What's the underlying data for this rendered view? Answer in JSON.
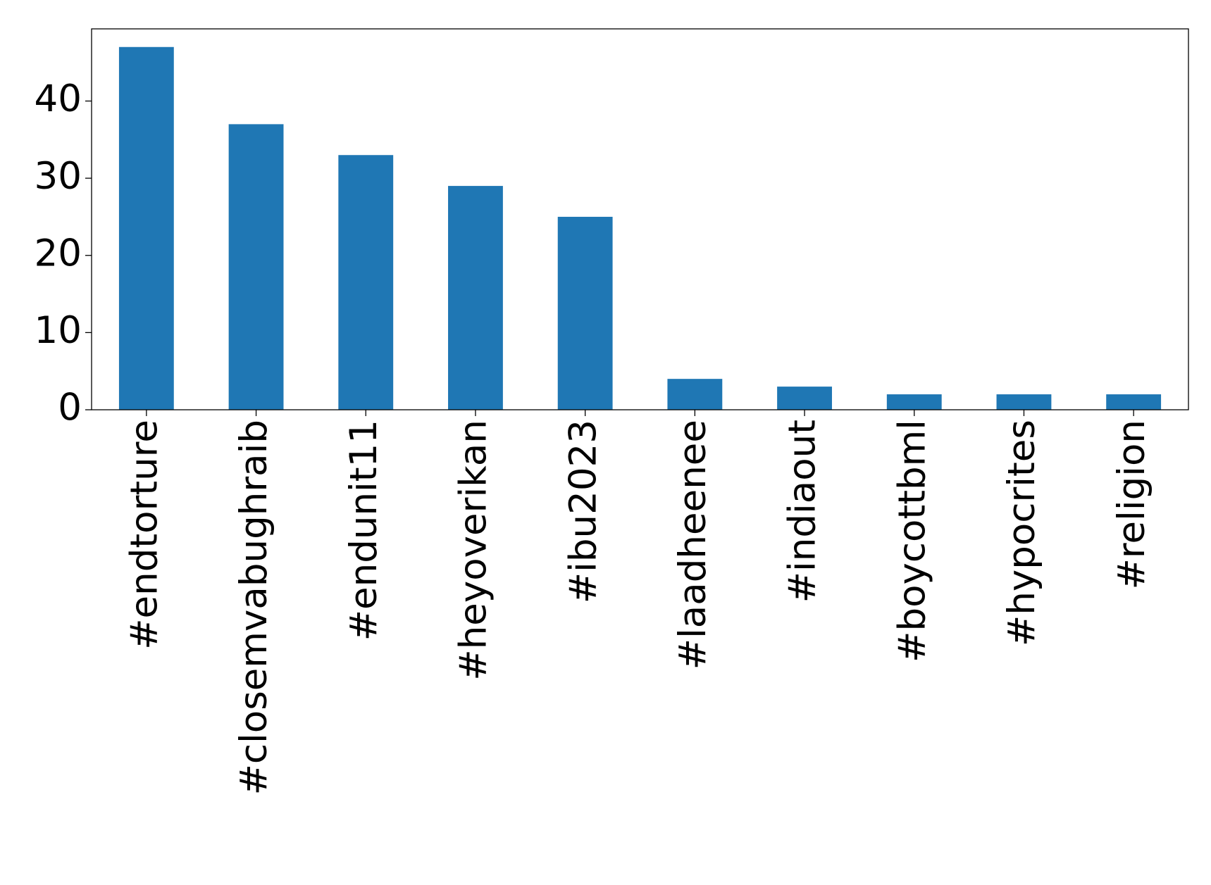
{
  "chart_data": {
    "type": "bar",
    "categories": [
      "#endtorture",
      "#closemvabughraib",
      "#endunit11",
      "#heyoverikan",
      "#ibu2023",
      "#laadheenee",
      "#indiaout",
      "#boycottbml",
      "#hypocrites",
      "#religion"
    ],
    "values": [
      47,
      37,
      33,
      29,
      25,
      4,
      3,
      2,
      2,
      2
    ],
    "color": "#1f77b4",
    "ylim": [
      0,
      49.35
    ],
    "yticks": [
      0,
      10,
      20,
      30,
      40
    ],
    "grid": false
  }
}
